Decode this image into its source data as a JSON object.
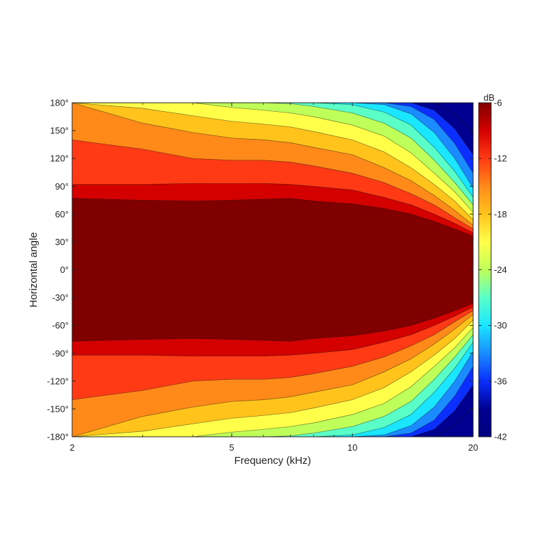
{
  "chart_data": {
    "type": "heatmap",
    "subtype": "filled-contour",
    "xlabel": "Frequency (kHz)",
    "ylabel": "Horizontal angle",
    "x_scale": "log",
    "xlim": [
      2,
      20
    ],
    "ylim": [
      -180,
      180
    ],
    "x_ticks": [
      {
        "value": 2,
        "label": "2"
      },
      {
        "value": 5,
        "label": "5"
      },
      {
        "value": 10,
        "label": "10"
      },
      {
        "value": 20,
        "label": "20"
      }
    ],
    "y_ticks": [
      {
        "value": 180,
        "label": "180°"
      },
      {
        "value": 150,
        "label": "150°"
      },
      {
        "value": 120,
        "label": "120°"
      },
      {
        "value": 90,
        "label": "90°"
      },
      {
        "value": 60,
        "label": "60°"
      },
      {
        "value": 30,
        "label": "30°"
      },
      {
        "value": 0,
        "label": "0°"
      },
      {
        "value": -30,
        "label": "-30°"
      },
      {
        "value": -60,
        "label": "-60°"
      },
      {
        "value": -90,
        "label": "-90°"
      },
      {
        "value": -120,
        "label": "-120°"
      },
      {
        "value": -150,
        "label": "-150°"
      },
      {
        "value": -180,
        "label": "-180°"
      }
    ],
    "colorbar": {
      "unit_label": "dB",
      "range": [
        -42,
        -6
      ],
      "ticks": [
        {
          "value": -6,
          "label": "-6"
        },
        {
          "value": -12,
          "label": "-12"
        },
        {
          "value": -18,
          "label": "-18"
        },
        {
          "value": -24,
          "label": "-24"
        },
        {
          "value": -30,
          "label": "-30"
        },
        {
          "value": -36,
          "label": "-36"
        },
        {
          "value": -42,
          "label": "-42"
        }
      ]
    },
    "levels": [
      {
        "dB": -6,
        "color": "#800000"
      },
      {
        "dB": -9,
        "color": "#d40000"
      },
      {
        "dB": -12,
        "color": "#ff3a14"
      },
      {
        "dB": -15,
        "color": "#ff8a1a"
      },
      {
        "dB": -18,
        "color": "#ffc31c"
      },
      {
        "dB": -21,
        "color": "#ffff4a"
      },
      {
        "dB": -24,
        "color": "#bfff5a"
      },
      {
        "dB": -27,
        "color": "#5affc8"
      },
      {
        "dB": -30,
        "color": "#1ae6ff"
      },
      {
        "dB": -33,
        "color": "#1a8cff"
      },
      {
        "dB": -36,
        "color": "#0a2fff"
      },
      {
        "dB": -39,
        "color": "#000090"
      }
    ],
    "contours": {
      "x": [
        2,
        3,
        4,
        5,
        6,
        7,
        8,
        10,
        12,
        14,
        16,
        18,
        20
      ],
      "angles_by_level": {
        "-6": [
          77,
          75,
          74,
          75,
          76,
          77,
          74,
          71,
          66,
          60,
          52,
          44,
          36
        ],
        "-9": [
          92,
          92,
          93,
          93,
          93,
          92,
          90,
          86,
          78,
          70,
          60,
          50,
          40
        ],
        "-12": [
          140,
          130,
          120,
          118,
          118,
          116,
          112,
          104,
          94,
          82,
          70,
          56,
          44
        ],
        "-15": [
          180,
          158,
          148,
          142,
          140,
          137,
          132,
          124,
          110,
          96,
          80,
          64,
          48
        ],
        "-18": [
          180,
          174,
          166,
          160,
          157,
          154,
          149,
          140,
          127,
          110,
          92,
          74,
          54
        ],
        "-21": [
          180,
          180,
          180,
          175,
          172,
          169,
          165,
          156,
          144,
          126,
          104,
          84,
          62
        ],
        "-24": [
          180,
          180,
          180,
          180,
          180,
          179,
          176,
          169,
          158,
          142,
          118,
          94,
          70
        ],
        "-27": [
          180,
          180,
          180,
          180,
          180,
          180,
          180,
          178,
          170,
          156,
          132,
          106,
          78
        ],
        "-30": [
          180,
          180,
          180,
          180,
          180,
          180,
          180,
          180,
          178,
          168,
          148,
          120,
          88
        ],
        "-33": [
          180,
          180,
          180,
          180,
          180,
          180,
          180,
          180,
          180,
          176,
          162,
          136,
          104
        ],
        "-36": [
          180,
          180,
          180,
          180,
          180,
          180,
          180,
          180,
          180,
          180,
          172,
          152,
          124
        ],
        "-39": [
          180,
          180,
          180,
          180,
          180,
          180,
          180,
          180,
          180,
          180,
          180,
          168,
          148
        ]
      }
    },
    "grid": false,
    "legend": "colorbar-right"
  }
}
